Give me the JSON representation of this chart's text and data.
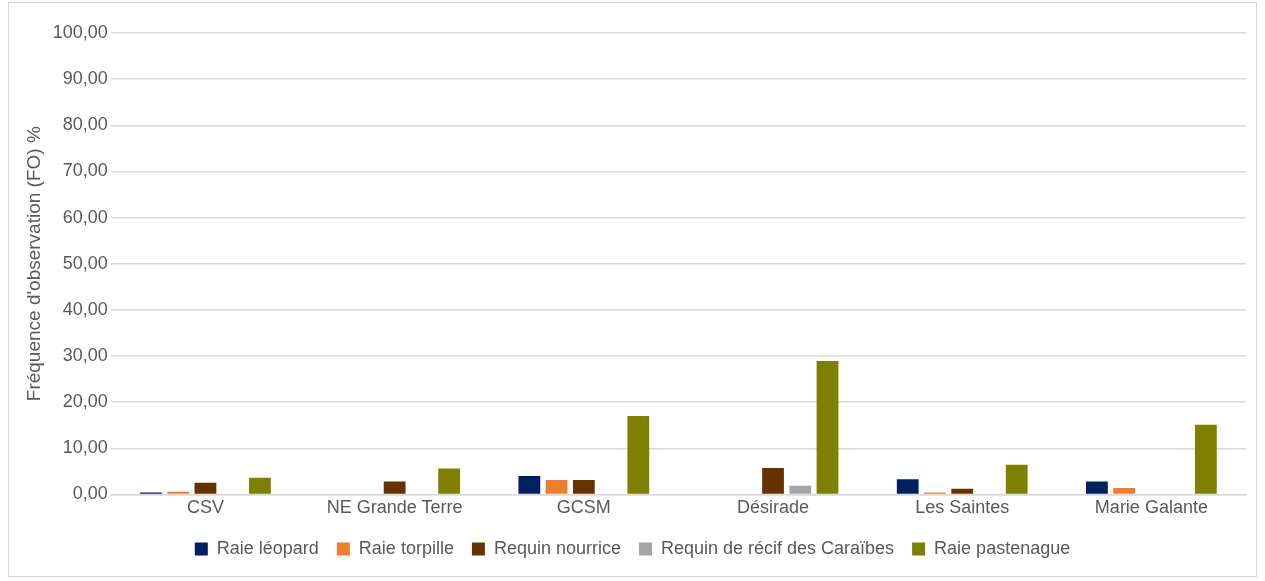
{
  "chart_data": {
    "type": "bar",
    "ylabel": "Fréquence d'observation (FO) %",
    "categories": [
      "CSV",
      "NE Grande Terre",
      "GCSM",
      "Désirade",
      "Les Saintes",
      "Marie Galante"
    ],
    "series": [
      {
        "name": "Raie léopard",
        "color": "#002060",
        "values": [
          0.4,
          0,
          4.0,
          0,
          3.3,
          2.8
        ]
      },
      {
        "name": "Raie torpille",
        "color": "#ed7d31",
        "values": [
          0.6,
          0,
          3.1,
          0,
          0.4,
          1.4
        ]
      },
      {
        "name": "Requin nourrice",
        "color": "#663300",
        "values": [
          2.5,
          2.8,
          3.1,
          5.7,
          1.2,
          0
        ]
      },
      {
        "name": "Requin de récif des Caraïbes",
        "color": "#a5a5a5",
        "values": [
          0,
          0,
          0,
          1.9,
          0,
          0
        ]
      },
      {
        "name": "Raie pastenague",
        "color": "#7f7f00",
        "values": [
          3.6,
          5.6,
          17.0,
          28.9,
          6.4,
          15.1
        ]
      }
    ],
    "ylim": [
      0,
      100
    ],
    "yticks": [
      {
        "value": 0,
        "label": "0,00"
      },
      {
        "value": 10,
        "label": "10,00"
      },
      {
        "value": 20,
        "label": "20,00"
      },
      {
        "value": 30,
        "label": "30,00"
      },
      {
        "value": 40,
        "label": "40,00"
      },
      {
        "value": 50,
        "label": "50,00"
      },
      {
        "value": 60,
        "label": "60,00"
      },
      {
        "value": 70,
        "label": "70,00"
      },
      {
        "value": 80,
        "label": "80,00"
      },
      {
        "value": 90,
        "label": "90,00"
      },
      {
        "value": 100,
        "label": "100,00"
      }
    ],
    "grid": "y",
    "legend": "bottom"
  }
}
